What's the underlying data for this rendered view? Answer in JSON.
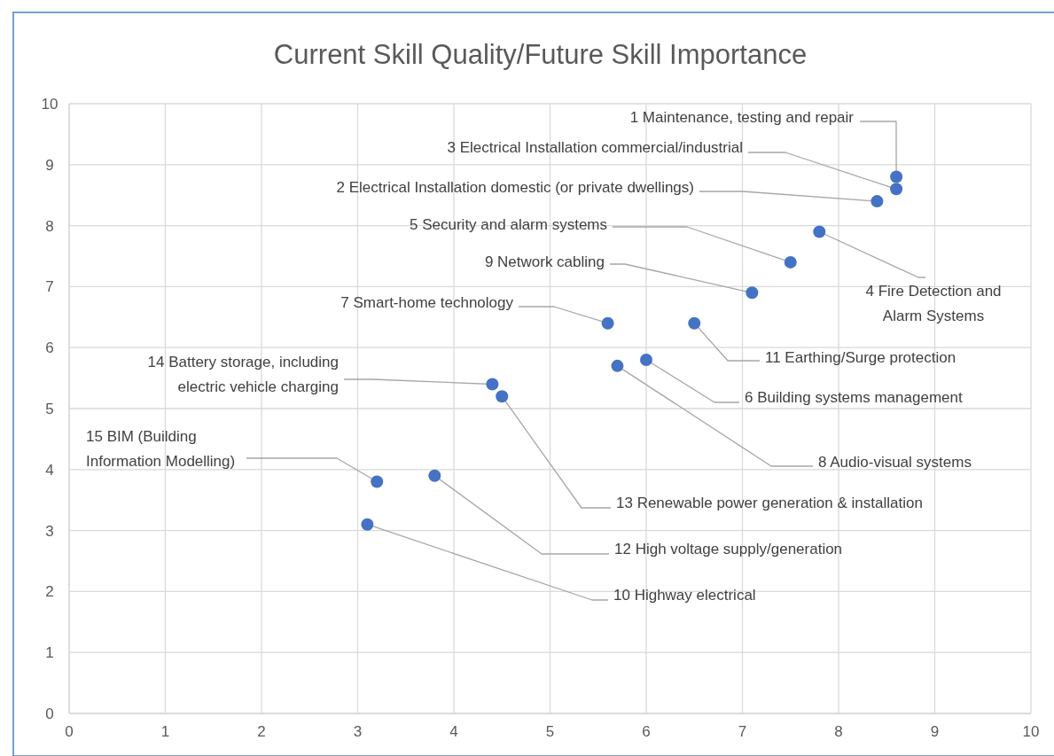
{
  "chart_data": {
    "type": "scatter",
    "title": "Current Skill Quality/Future Skill Importance",
    "x": [
      8.6,
      8.6,
      8.4,
      7.5,
      7.1,
      5.6,
      7.8,
      6.5,
      6.0,
      5.7,
      4.4,
      4.5,
      3.2,
      3.8,
      3.1
    ],
    "series": [
      {
        "color": "#4472c4",
        "values": [
          8.8,
          8.6,
          8.4,
          7.4,
          6.9,
          6.4,
          7.9,
          6.4,
          5.8,
          5.7,
          5.4,
          5.2,
          3.8,
          3.9,
          3.1
        ]
      }
    ],
    "marker": "circle",
    "grid": true,
    "xlim": [
      0,
      10
    ],
    "xticks": [
      0,
      1,
      2,
      3,
      4,
      5,
      6,
      7,
      8,
      9,
      10
    ],
    "ylim": [
      0,
      10
    ],
    "yticks": [
      0,
      1,
      2,
      3,
      4,
      5,
      6,
      7,
      8,
      9,
      10
    ],
    "annotations": [
      {
        "text": "1 Maintenance, testing and repair",
        "x": 8.6,
        "y": 8.8
      },
      {
        "text": "3 Electrical Installation commercial/industrial",
        "x": 8.6,
        "y": 8.6
      },
      {
        "text": "2 Electrical Installation domestic (or private dwellings)",
        "x": 8.4,
        "y": 8.4
      },
      {
        "text": "5 Security and alarm systems",
        "x": 7.5,
        "y": 7.4
      },
      {
        "text": "9 Network cabling",
        "x": 7.1,
        "y": 6.9
      },
      {
        "text": "7 Smart-home technology",
        "x": 5.6,
        "y": 6.4
      },
      {
        "text": "4 Fire Detection and Alarm Systems",
        "x": 7.8,
        "y": 7.9
      },
      {
        "text": "11 Earthing/Surge protection",
        "x": 6.5,
        "y": 6.4
      },
      {
        "text": "6 Building systems management",
        "x": 6.0,
        "y": 5.8
      },
      {
        "text": "8 Audio-visual systems",
        "x": 5.7,
        "y": 5.7
      },
      {
        "text": "14 Battery storage, including electric vehicle charging",
        "x": 4.4,
        "y": 5.4
      },
      {
        "text": "13 Renewable power generation & installation",
        "x": 4.5,
        "y": 5.2
      },
      {
        "text": "15 BIM (Building Information Modelling)",
        "x": 3.2,
        "y": 3.8
      },
      {
        "text": "12 High voltage supply/generation",
        "x": 3.8,
        "y": 3.9
      },
      {
        "text": "10 Highway electrical",
        "x": 3.1,
        "y": 3.1
      }
    ]
  }
}
